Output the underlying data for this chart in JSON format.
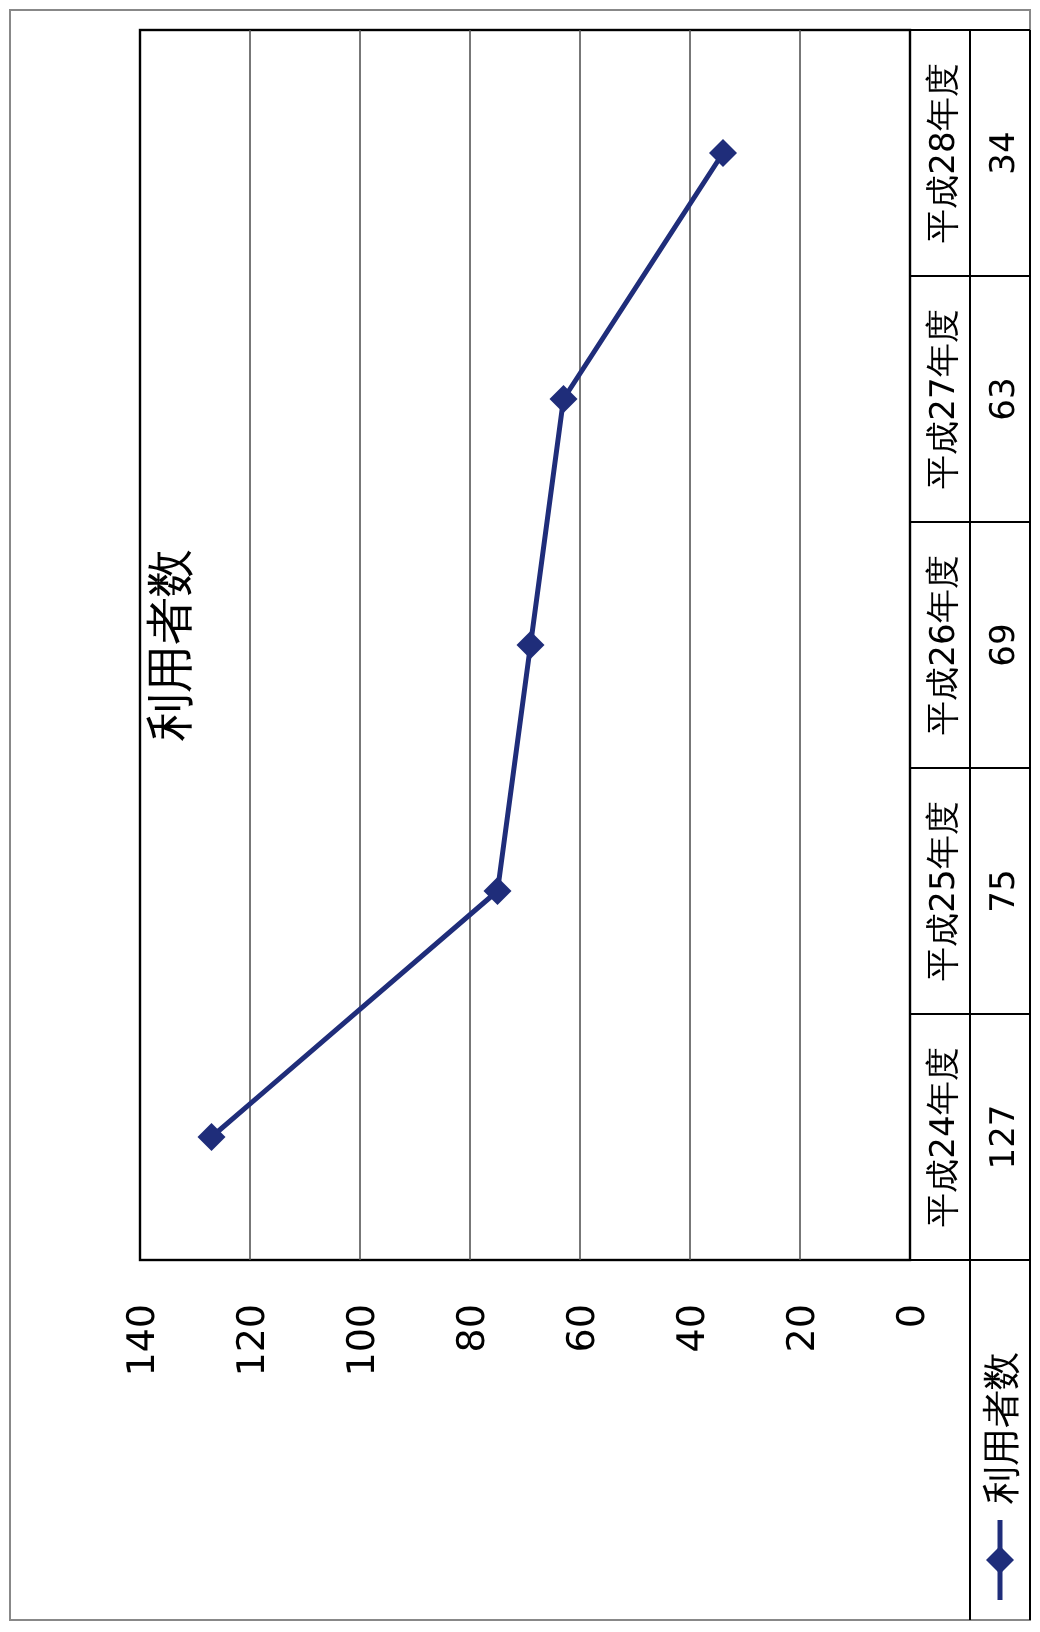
{
  "chart_data": {
    "type": "line",
    "title": "利用者数",
    "orientation": "horizontal",
    "categories": [
      "平成28年度",
      "平成27年度",
      "平成26年度",
      "平成25年度",
      "平成24年度"
    ],
    "series": [
      {
        "name": "利用者数",
        "color": "#1f2d7a",
        "values": [
          34,
          63,
          69,
          75,
          127
        ]
      }
    ],
    "xlim": [
      140,
      0
    ],
    "xticks": [
      140,
      120,
      100,
      80,
      60,
      40,
      20,
      0
    ],
    "grid": "x",
    "marker": "diamond",
    "data_labels": true,
    "legend": "bottom right"
  }
}
